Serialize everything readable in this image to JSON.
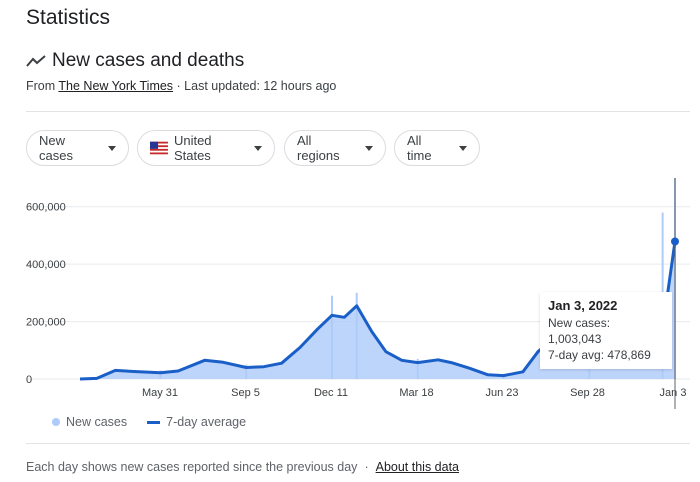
{
  "page": {
    "heading": "Statistics"
  },
  "card": {
    "title": "New cases and deaths",
    "source_prefix": "From",
    "source_link": "The New York Times",
    "updated": "· Last updated: 12 hours ago"
  },
  "filters": {
    "metric": "New cases",
    "country": "United States",
    "region": "All regions",
    "time": "All time"
  },
  "legend": {
    "dots": "New cases",
    "line": "7-day average"
  },
  "tooltip": {
    "date": "Jan 3, 2022",
    "cases_line": "New cases: 1,003,043",
    "avg_line": "7-day avg: 478,869"
  },
  "footer": {
    "note": "Each day shows new cases reported since the previous day",
    "separator": "·",
    "link": "About this data"
  },
  "colors": {
    "avg_line": "#1a5fc7",
    "bars": "#aecbfa",
    "grid": "#e8eaed"
  },
  "chart_data": {
    "type": "area",
    "ylim": [
      0,
      700000
    ],
    "y_ticks": [
      0,
      200000,
      400000,
      600000
    ],
    "y_tick_labels": [
      "0",
      "200,000",
      "400,000",
      "600,000"
    ],
    "x_tick_labels": [
      "May 31",
      "Sep 5",
      "Dec 11",
      "Mar 18",
      "Jun 23",
      "Sep 28",
      "Jan 3"
    ],
    "grid": true,
    "legend_position": "bottom-left",
    "series": [
      {
        "name": "7-day average",
        "x": [
          "2020-03-01",
          "2020-03-20",
          "2020-04-10",
          "2020-05-01",
          "2020-05-31",
          "2020-06-20",
          "2020-07-20",
          "2020-08-10",
          "2020-09-05",
          "2020-09-25",
          "2020-10-15",
          "2020-11-05",
          "2020-11-25",
          "2020-12-11",
          "2020-12-25",
          "2021-01-08",
          "2021-01-25",
          "2021-02-10",
          "2021-02-28",
          "2021-03-18",
          "2021-04-10",
          "2021-04-25",
          "2021-05-15",
          "2021-06-05",
          "2021-06-23",
          "2021-07-15",
          "2021-08-01",
          "2021-08-20",
          "2021-09-10",
          "2021-09-28",
          "2021-10-20",
          "2021-11-10",
          "2021-12-01",
          "2021-12-20",
          "2022-01-03"
        ],
        "values": [
          0,
          2000,
          30000,
          26000,
          22000,
          28000,
          65000,
          58000,
          40000,
          43000,
          55000,
          110000,
          175000,
          222000,
          215000,
          255000,
          165000,
          95000,
          65000,
          57000,
          67000,
          57000,
          38000,
          15000,
          12000,
          25000,
          95000,
          145000,
          165000,
          110000,
          78000,
          82000,
          95000,
          175000,
          478869
        ]
      },
      {
        "name": "New cases",
        "x": [
          "2020-05-31",
          "2020-09-05",
          "2020-12-11",
          "2021-01-08",
          "2021-03-18",
          "2021-06-23",
          "2021-09-28",
          "2021-12-20",
          "2022-01-03"
        ],
        "values": [
          30000,
          50000,
          290000,
          300000,
          70000,
          15000,
          160000,
          580000,
          1003043
        ]
      }
    ]
  }
}
